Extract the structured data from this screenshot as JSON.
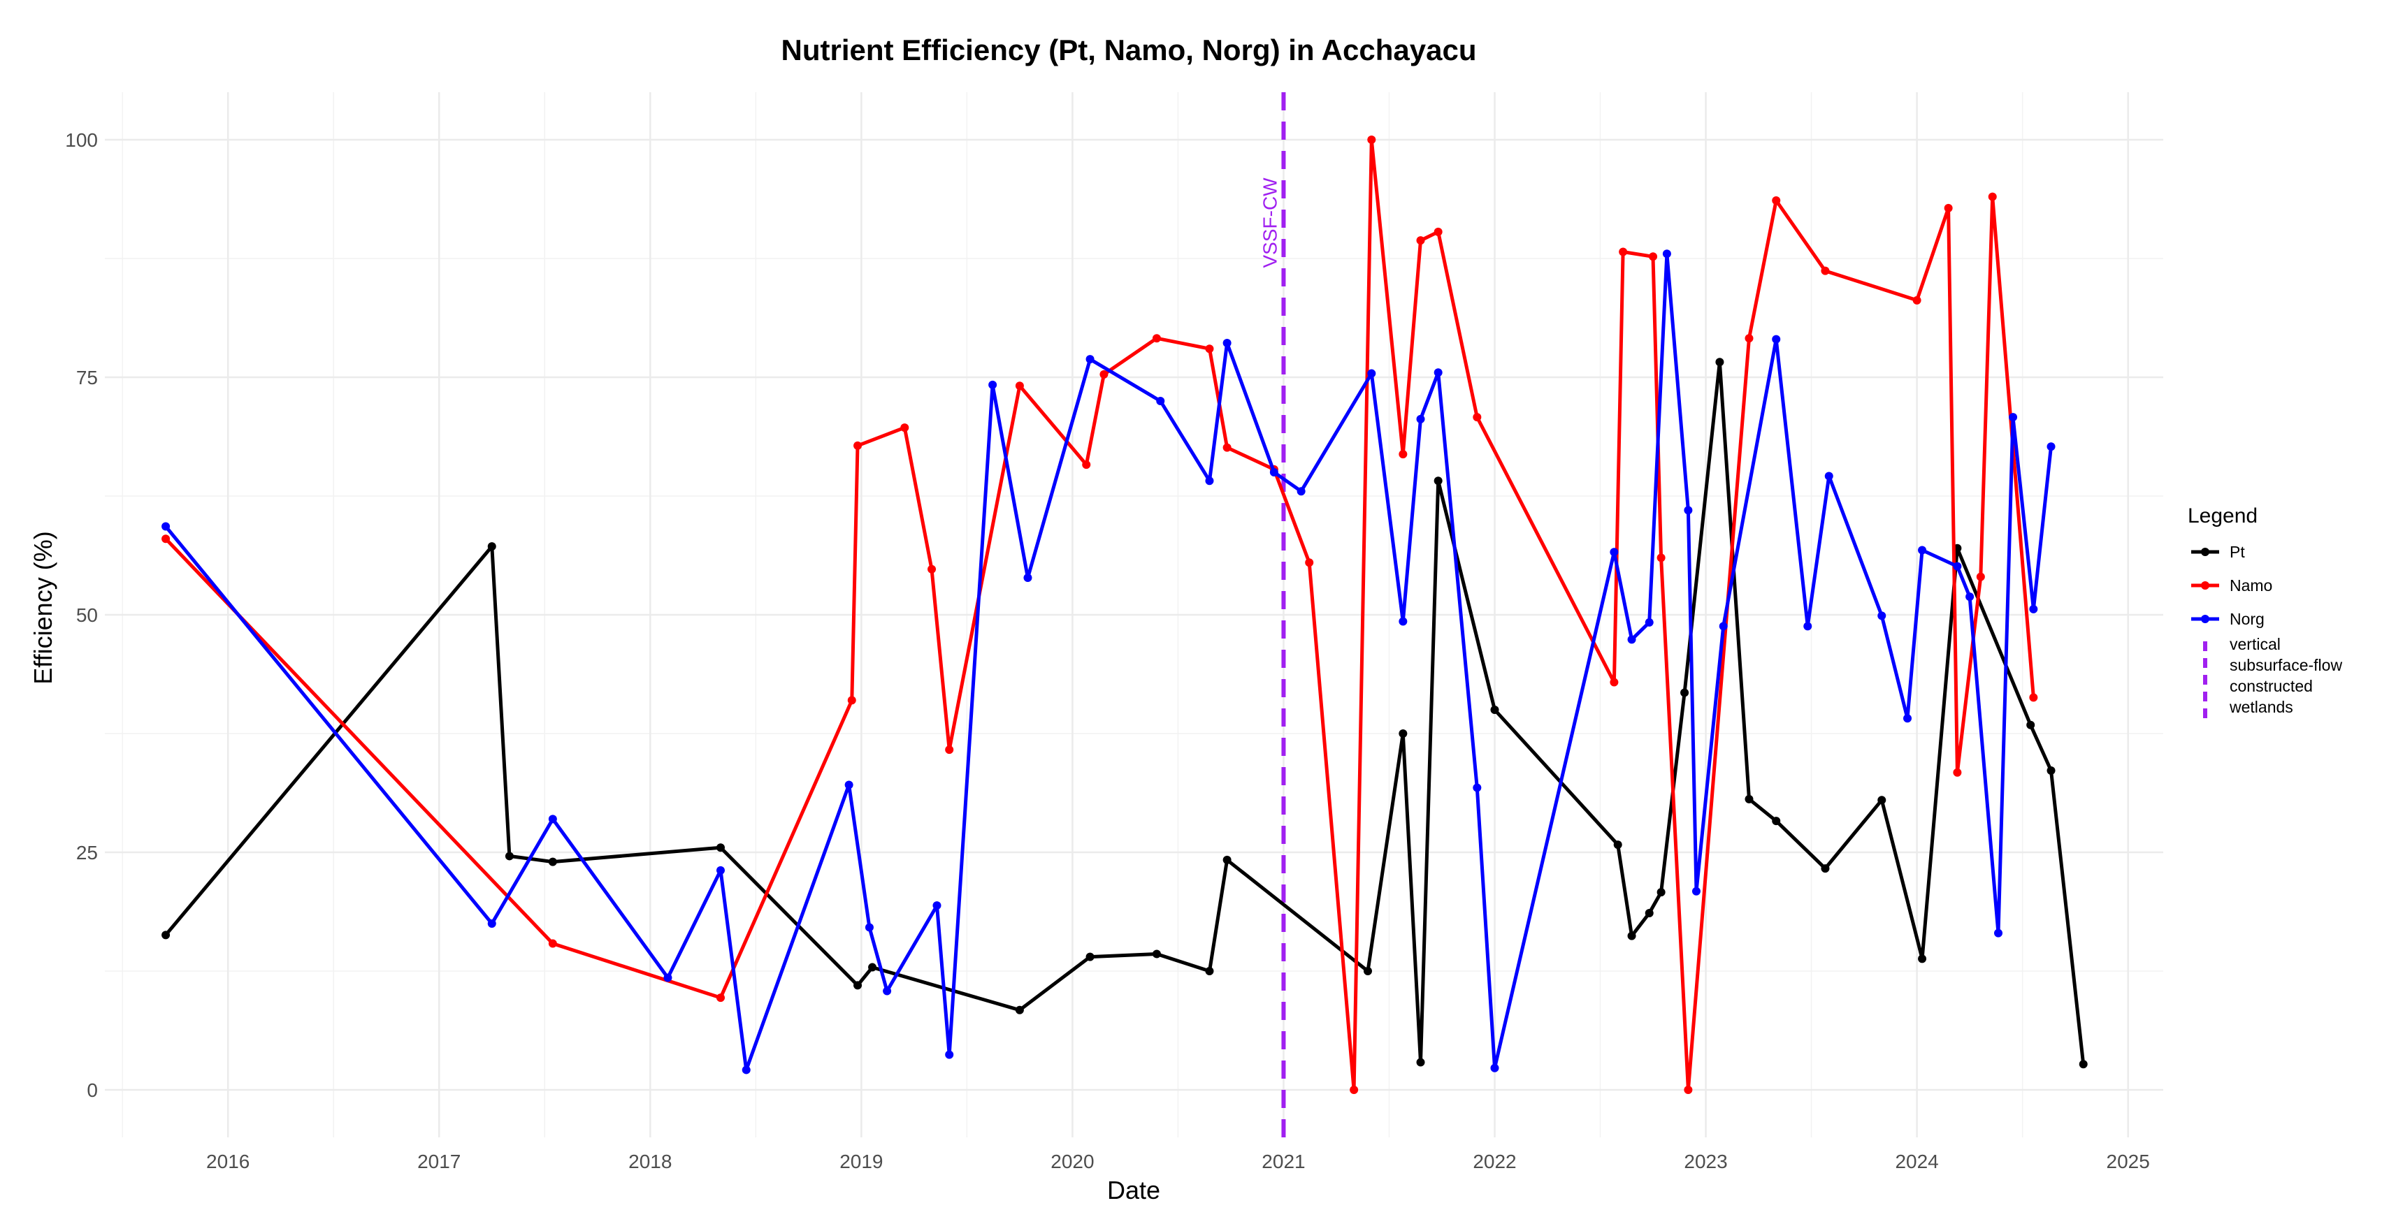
{
  "chart_data": {
    "type": "line",
    "title": "Nutrient Efficiency (Pt, Namo, Norg) in Acchayacu",
    "xlabel": "Date",
    "ylabel": "Efficiency (%)",
    "xlim": [
      "2015-06-01",
      "2025-03-01"
    ],
    "ylim": [
      -5,
      105
    ],
    "x_ticks": [
      "2016",
      "2017",
      "2018",
      "2019",
      "2020",
      "2021",
      "2022",
      "2023",
      "2024",
      "2025"
    ],
    "y_ticks": [
      0,
      25,
      50,
      75,
      100
    ],
    "grid": true,
    "legend_placement": "right",
    "legend_title": "Legend",
    "series": [
      {
        "name": "Pt",
        "color": "#000000",
        "points": [
          [
            "2015-09-15",
            16.3
          ],
          [
            "2017-04-01",
            57.2
          ],
          [
            "2017-05-01",
            24.6
          ],
          [
            "2017-07-15",
            24.0
          ],
          [
            "2018-05-01",
            25.5
          ],
          [
            "2018-12-25",
            11.0
          ],
          [
            "2019-01-20",
            12.9
          ],
          [
            "2019-10-01",
            8.4
          ],
          [
            "2020-02-01",
            14.0
          ],
          [
            "2020-05-25",
            14.3
          ],
          [
            "2020-08-25",
            12.5
          ],
          [
            "2020-09-25",
            24.2
          ],
          [
            "2021-05-25",
            12.5
          ],
          [
            "2021-07-25",
            37.5
          ],
          [
            "2021-08-25",
            2.9
          ],
          [
            "2021-09-25",
            64.1
          ],
          [
            "2022-01-01",
            40.0
          ],
          [
            "2022-08-01",
            25.8
          ],
          [
            "2022-08-25",
            16.2
          ],
          [
            "2022-09-25",
            18.6
          ],
          [
            "2022-10-15",
            20.8
          ],
          [
            "2022-11-25",
            41.8
          ],
          [
            "2023-01-25",
            76.6
          ],
          [
            "2023-03-15",
            30.6
          ],
          [
            "2023-05-01",
            28.3
          ],
          [
            "2023-07-25",
            23.3
          ],
          [
            "2023-11-01",
            30.5
          ],
          [
            "2024-01-10",
            13.8
          ],
          [
            "2024-03-10",
            57.0
          ],
          [
            "2024-07-15",
            38.4
          ],
          [
            "2024-08-20",
            33.6
          ],
          [
            "2024-10-15",
            2.7
          ]
        ]
      },
      {
        "name": "Namo",
        "color": "#ff0000",
        "points": [
          [
            "2015-09-15",
            58.0
          ],
          [
            "2017-07-15",
            15.4
          ],
          [
            "2018-05-01",
            9.7
          ],
          [
            "2018-12-15",
            41.0
          ],
          [
            "2018-12-25",
            67.8
          ],
          [
            "2019-03-15",
            69.7
          ],
          [
            "2019-05-01",
            54.8
          ],
          [
            "2019-06-01",
            35.8
          ],
          [
            "2019-10-01",
            74.1
          ],
          [
            "2020-01-25",
            65.8
          ],
          [
            "2020-02-25",
            75.3
          ],
          [
            "2020-05-25",
            79.1
          ],
          [
            "2020-08-25",
            78.0
          ],
          [
            "2020-09-25",
            67.6
          ],
          [
            "2020-12-15",
            65.3
          ],
          [
            "2021-02-15",
            55.5
          ],
          [
            "2021-05-01",
            0.0
          ],
          [
            "2021-06-01",
            100.0
          ],
          [
            "2021-07-25",
            66.9
          ],
          [
            "2021-08-25",
            89.4
          ],
          [
            "2021-09-25",
            90.3
          ],
          [
            "2021-12-01",
            70.8
          ],
          [
            "2022-07-25",
            42.9
          ],
          [
            "2022-08-10",
            88.2
          ],
          [
            "2022-10-01",
            87.7
          ],
          [
            "2022-10-15",
            56.0
          ],
          [
            "2022-12-01",
            0.0
          ],
          [
            "2023-03-15",
            79.1
          ],
          [
            "2023-05-01",
            93.6
          ],
          [
            "2023-07-25",
            86.2
          ],
          [
            "2024-01-01",
            83.1
          ],
          [
            "2024-02-25",
            92.8
          ],
          [
            "2024-03-10",
            33.4
          ],
          [
            "2024-04-20",
            54.0
          ],
          [
            "2024-05-10",
            94.0
          ],
          [
            "2024-07-20",
            41.3
          ]
        ]
      },
      {
        "name": "Norg",
        "color": "#0000ff",
        "points": [
          [
            "2015-09-15",
            59.3
          ],
          [
            "2017-04-01",
            17.5
          ],
          [
            "2017-07-15",
            28.5
          ],
          [
            "2018-02-01",
            11.8
          ],
          [
            "2018-05-01",
            23.1
          ],
          [
            "2018-06-15",
            2.1
          ],
          [
            "2018-12-10",
            32.1
          ],
          [
            "2019-01-15",
            17.1
          ],
          [
            "2019-02-15",
            10.4
          ],
          [
            "2019-05-10",
            19.4
          ],
          [
            "2019-06-01",
            3.7
          ],
          [
            "2019-08-15",
            74.2
          ],
          [
            "2019-10-15",
            53.9
          ],
          [
            "2020-02-01",
            76.9
          ],
          [
            "2020-06-01",
            72.5
          ],
          [
            "2020-08-25",
            64.1
          ],
          [
            "2020-09-25",
            78.6
          ],
          [
            "2020-12-15",
            65.0
          ],
          [
            "2021-02-01",
            63.0
          ],
          [
            "2021-06-01",
            75.4
          ],
          [
            "2021-07-25",
            49.3
          ],
          [
            "2021-08-25",
            70.6
          ],
          [
            "2021-09-25",
            75.5
          ],
          [
            "2021-12-01",
            31.8
          ],
          [
            "2022-01-01",
            2.3
          ],
          [
            "2022-07-25",
            56.6
          ],
          [
            "2022-08-25",
            47.4
          ],
          [
            "2022-09-25",
            49.2
          ],
          [
            "2022-10-25",
            88.0
          ],
          [
            "2022-12-01",
            61.0
          ],
          [
            "2022-12-15",
            20.9
          ],
          [
            "2023-02-01",
            48.8
          ],
          [
            "2023-05-01",
            79.0
          ],
          [
            "2023-06-25",
            48.8
          ],
          [
            "2023-08-01",
            64.6
          ],
          [
            "2023-11-01",
            49.9
          ],
          [
            "2023-12-15",
            39.1
          ],
          [
            "2024-01-10",
            56.8
          ],
          [
            "2024-03-10",
            55.1
          ],
          [
            "2024-04-01",
            51.9
          ],
          [
            "2024-05-20",
            16.5
          ],
          [
            "2024-06-15",
            70.8
          ],
          [
            "2024-07-20",
            50.6
          ],
          [
            "2024-08-20",
            67.7
          ]
        ]
      }
    ],
    "annotations": [
      {
        "type": "vline",
        "x": "2021-01-01",
        "color": "#a020f0",
        "style": "dashed",
        "label": "VSSF-CW",
        "legend_label_lines": [
          "vertical",
          "subsurface-flow",
          "constructed",
          "wetlands"
        ]
      }
    ]
  }
}
